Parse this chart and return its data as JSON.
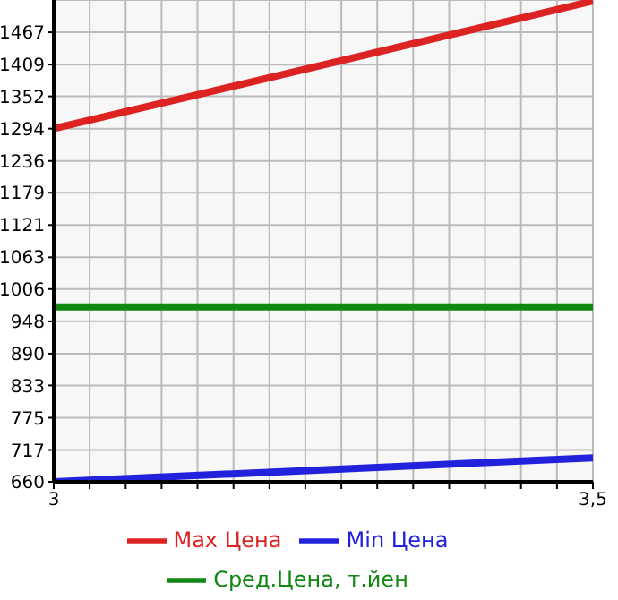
{
  "chart_data": {
    "type": "line",
    "x": [
      3,
      3.5
    ],
    "series": [
      {
        "name": "Max Цена",
        "color": "#dd2222",
        "values": [
          1294,
          1523
        ]
      },
      {
        "name": "Min Цена",
        "color": "#2222dd",
        "values": [
          660,
          703
        ]
      },
      {
        "name": "Сред.Цена, т.йен",
        "color": "#118811",
        "values": [
          974,
          974
        ]
      }
    ],
    "xlim": [
      3,
      3.5
    ],
    "xticks": [
      3,
      {
        "value": 3.0333,
        "label": null
      },
      {
        "value": 3.0667,
        "label": null
      },
      {
        "value": 3.1,
        "label": null
      },
      {
        "value": 3.1333,
        "label": null
      },
      {
        "value": 3.1667,
        "label": null
      },
      {
        "value": 3.2,
        "label": null
      },
      {
        "value": 3.2333,
        "label": null
      },
      {
        "value": 3.2667,
        "label": null
      },
      {
        "value": 3.3,
        "label": null
      },
      {
        "value": 3.3333,
        "label": null
      },
      {
        "value": 3.3667,
        "label": null
      },
      {
        "value": 3.4,
        "label": null
      },
      {
        "value": 3.4333,
        "label": null
      },
      {
        "value": 3.4667,
        "label": null
      },
      {
        "value": 3.5,
        "label": "3,5"
      }
    ],
    "ylim": [
      660,
      1525
    ],
    "yticks": [
      660,
      717,
      775,
      833,
      890,
      948,
      1006,
      1063,
      1121,
      1179,
      1236,
      1294,
      1352,
      1409,
      1467
    ],
    "grid": true,
    "legend": "bottom",
    "marker": "none",
    "line_style": "solid"
  }
}
